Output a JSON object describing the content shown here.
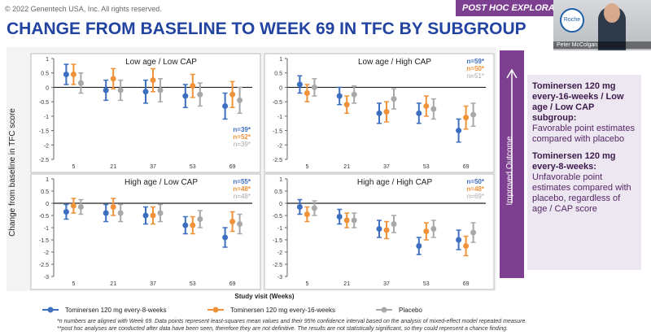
{
  "page": {
    "copyright": "© 2022 Genentech USA, Inc. All rights reserved.",
    "banner": "POST HOC EXPLORATOR",
    "logo": "Roche",
    "presenter": "Peter McColgan",
    "title": "CHANGE FROM BASELINE TO WEEK 69 IN TFC BY SUBGROUP",
    "y_axis_label": "Change from baseline in TFC score",
    "x_axis_label": "Study visit (Weeks)",
    "outcome_label": "Improved Outcome",
    "notes": [
      {
        "heading": "Tominersen 120 mg every-16-weeks / Low age / Low CAP subgroup:",
        "text": "Favorable point estimates compared with placebo"
      },
      {
        "heading": "Tominersen 120 mg every-8-weeks:",
        "text": "Unfavorable point estimates compared with placebo, regardless of age / CAP score"
      }
    ],
    "footnotes": [
      "*n numbers are aligned with Week 69. Data points represent least-squares mean values and their 95% confidence interval based on the analysis of mixed-effect model repeated measure.",
      "**post hoc analyses are conducted after data have been seen, therefore they are not definitive.  The results are not statistically significant, so they could represent a chance finding."
    ]
  },
  "chart_data": [
    {
      "type": "errorbar",
      "title": "Low age / Low CAP",
      "categories": [
        "5",
        "21",
        "37",
        "53",
        "69"
      ],
      "ylim": [
        -2.5,
        1
      ],
      "yticks": [
        1,
        0.5,
        0,
        -0.5,
        -1,
        -1.5,
        -2,
        -2.5
      ],
      "series": [
        {
          "name": "Tominersen 120 mg every-8-weeks",
          "color": "#3d6fc0",
          "n_label": "n=39*",
          "values": [
            0.45,
            -0.1,
            -0.15,
            -0.3,
            -0.65
          ],
          "errors": [
            0.35,
            0.35,
            0.4,
            0.4,
            0.45
          ]
        },
        {
          "name": "Tominersen 120 mg every-16-weeks",
          "color": "#f0923a",
          "n_label": "n=52*",
          "values": [
            0.45,
            0.3,
            0.25,
            0.05,
            -0.25
          ],
          "errors": [
            0.35,
            0.35,
            0.4,
            0.4,
            0.45
          ]
        },
        {
          "name": "Placebo",
          "color": "#a8a8a8",
          "n_label": "n=39*",
          "values": [
            0.15,
            -0.1,
            -0.1,
            -0.25,
            -0.45
          ],
          "errors": [
            0.35,
            0.35,
            0.4,
            0.4,
            0.45
          ]
        }
      ]
    },
    {
      "type": "errorbar",
      "title": "Low age / High CAP",
      "categories": [
        "5",
        "21",
        "37",
        "53",
        "69"
      ],
      "ylim": [
        -2.5,
        1
      ],
      "yticks": [
        1,
        0.5,
        0,
        -0.5,
        -1,
        -1.5,
        -2,
        -2.5
      ],
      "series": [
        {
          "color": "#3d6fc0",
          "n_label": "n=59*",
          "values": [
            0.1,
            -0.3,
            -0.9,
            -0.9,
            -1.5
          ],
          "errors": [
            0.3,
            0.3,
            0.35,
            0.35,
            0.4
          ]
        },
        {
          "color": "#f0923a",
          "n_label": "n=50*",
          "values": [
            -0.2,
            -0.6,
            -0.85,
            -0.65,
            -1.05
          ],
          "errors": [
            0.3,
            0.3,
            0.35,
            0.35,
            0.4
          ]
        },
        {
          "color": "#a8a8a8",
          "n_label": "n=51*",
          "values": [
            0.0,
            -0.25,
            -0.4,
            -0.75,
            -0.95
          ],
          "errors": [
            0.3,
            0.3,
            0.35,
            0.35,
            0.4
          ]
        }
      ]
    },
    {
      "type": "errorbar",
      "title": "High age / Low CAP",
      "categories": [
        "5",
        "21",
        "37",
        "53",
        "69"
      ],
      "ylim": [
        -3,
        1
      ],
      "yticks": [
        1,
        0.5,
        0,
        -0.5,
        -1,
        -1.5,
        -2,
        -2.5,
        -3
      ],
      "series": [
        {
          "color": "#3d6fc0",
          "n_label": "n=55*",
          "values": [
            -0.35,
            -0.4,
            -0.5,
            -0.9,
            -1.4
          ],
          "errors": [
            0.3,
            0.35,
            0.35,
            0.35,
            0.4
          ]
        },
        {
          "color": "#f0923a",
          "n_label": "n=48*",
          "values": [
            -0.1,
            -0.15,
            -0.5,
            -0.9,
            -0.75
          ],
          "errors": [
            0.3,
            0.35,
            0.35,
            0.35,
            0.4
          ]
        },
        {
          "color": "#a8a8a8",
          "n_label": "n=48*",
          "values": [
            -0.15,
            -0.4,
            -0.4,
            -0.65,
            -0.85
          ],
          "errors": [
            0.3,
            0.35,
            0.35,
            0.35,
            0.4
          ]
        }
      ]
    },
    {
      "type": "errorbar",
      "title": "High age / High CAP",
      "categories": [
        "5",
        "21",
        "37",
        "53",
        "69"
      ],
      "ylim": [
        -3,
        1
      ],
      "yticks": [
        1,
        0.5,
        0,
        -0.5,
        -1,
        -1.5,
        -2,
        -2.5,
        -3
      ],
      "series": [
        {
          "color": "#3d6fc0",
          "n_label": "n=50*",
          "values": [
            -0.15,
            -0.55,
            -1.05,
            -1.75,
            -1.5
          ],
          "errors": [
            0.3,
            0.3,
            0.35,
            0.35,
            0.4
          ]
        },
        {
          "color": "#f0923a",
          "n_label": "n=48*",
          "values": [
            -0.45,
            -0.7,
            -1.1,
            -1.15,
            -1.75
          ],
          "errors": [
            0.3,
            0.3,
            0.35,
            0.35,
            0.4
          ]
        },
        {
          "color": "#a8a8a8",
          "n_label": "n=69*",
          "values": [
            -0.2,
            -0.7,
            -0.85,
            -1.05,
            -1.2
          ],
          "errors": [
            0.3,
            0.3,
            0.35,
            0.35,
            0.4
          ]
        }
      ]
    }
  ]
}
